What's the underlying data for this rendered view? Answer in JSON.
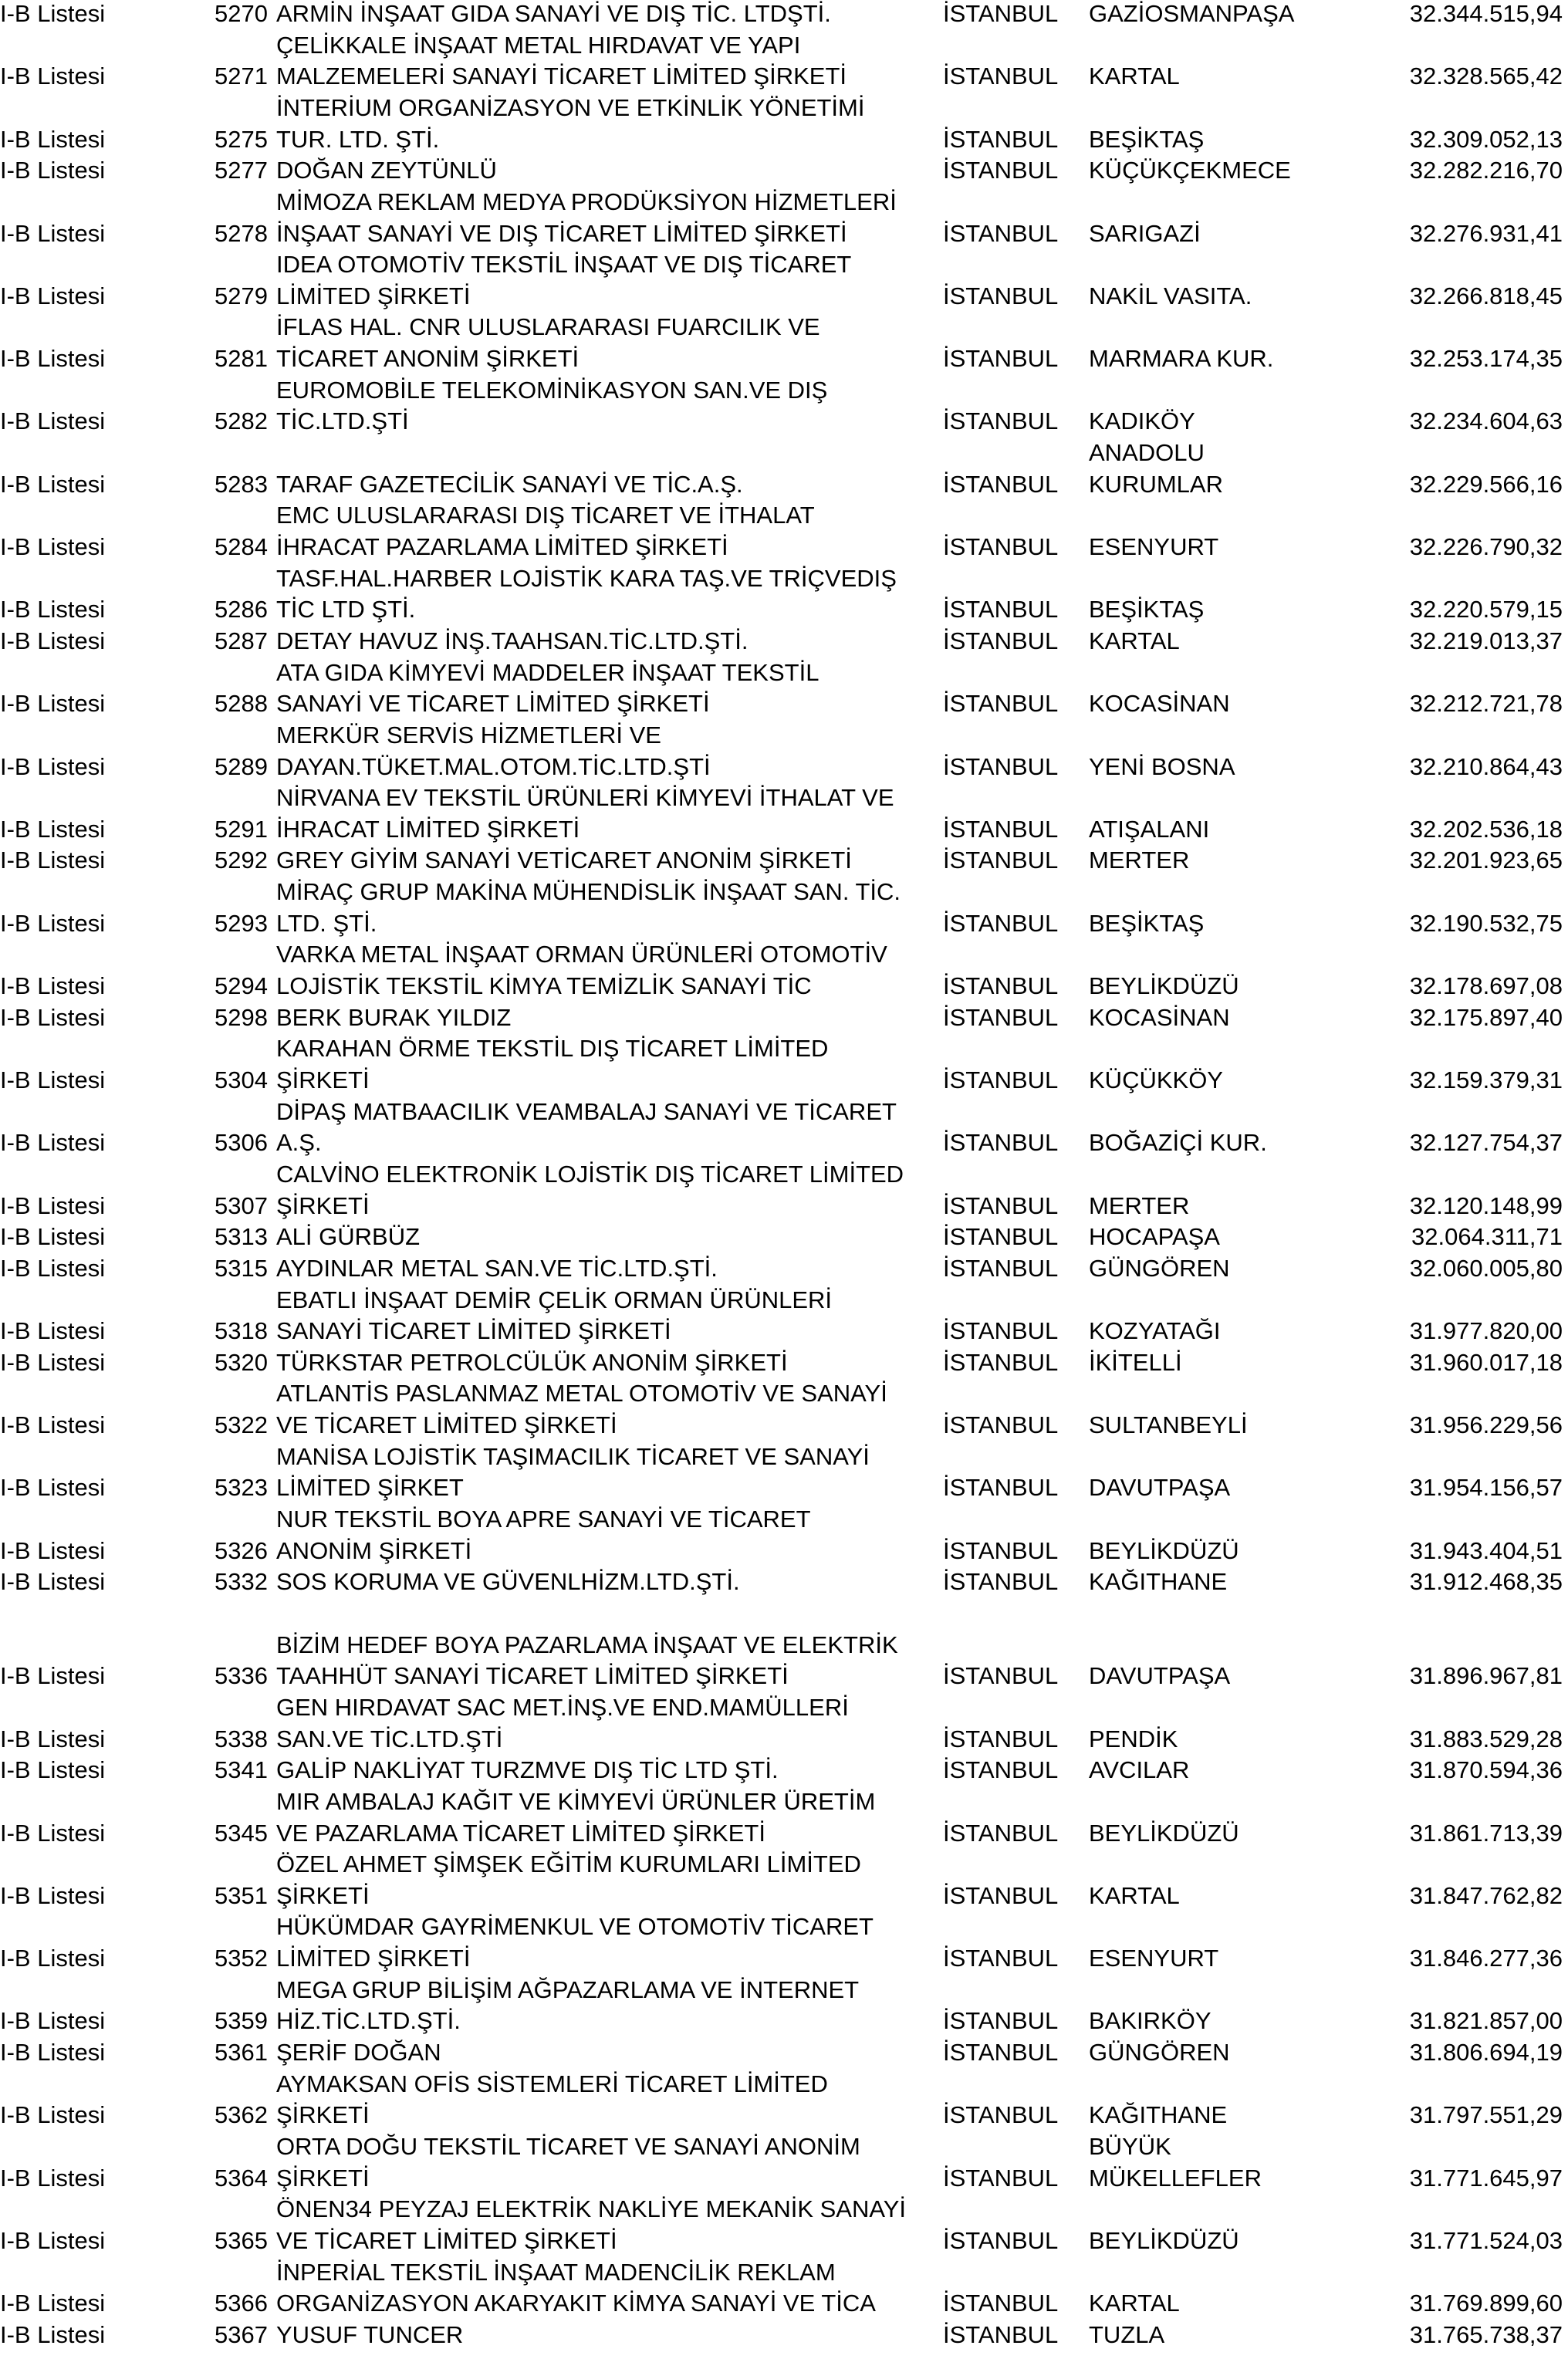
{
  "rows": [
    {
      "list": "I-B Listesi",
      "no": "5270",
      "name": [
        "ARMİN İNŞAAT GIDA SANAYİ VE DIŞ TİC. LTDŞTİ."
      ],
      "city": "İSTANBUL",
      "district": [
        "GAZİOSMANPAŞA"
      ],
      "amount": "32.344.515,94"
    },
    {
      "list": "I-B Listesi",
      "no": "5271",
      "name": [
        "ÇELİKKALE İNŞAAT METAL HIRDAVAT VE YAPI",
        "MALZEMELERİ SANAYİ TİCARET LİMİTED ŞİRKETİ"
      ],
      "city": "İSTANBUL",
      "district": [
        "KARTAL"
      ],
      "amount": "32.328.565,42"
    },
    {
      "list": "I-B Listesi",
      "no": "5275",
      "name": [
        "İNTERİUM ORGANİZASYON VE ETKİNLİK YÖNETİMİ",
        "TUR. LTD. ŞTİ."
      ],
      "city": "İSTANBUL",
      "district": [
        "BEŞİKTAŞ"
      ],
      "amount": "32.309.052,13"
    },
    {
      "list": "I-B Listesi",
      "no": "5277",
      "name": [
        "DOĞAN ZEYTÜNLÜ"
      ],
      "city": "İSTANBUL",
      "district": [
        "KÜÇÜKÇEKMECE"
      ],
      "amount": "32.282.216,70"
    },
    {
      "list": "I-B Listesi",
      "no": "5278",
      "name": [
        "MİMOZA REKLAM MEDYA PRODÜKSİYON HİZMETLERİ",
        "İNŞAAT SANAYİ VE DIŞ TİCARET LİMİTED ŞİRKETİ"
      ],
      "city": "İSTANBUL",
      "district": [
        "SARIGAZİ"
      ],
      "amount": "32.276.931,41"
    },
    {
      "list": "I-B Listesi",
      "no": "5279",
      "name": [
        "IDEA OTOMOTİV TEKSTİL İNŞAAT VE DIŞ TİCARET",
        "LİMİTED ŞİRKETİ"
      ],
      "city": "İSTANBUL",
      "district": [
        "NAKİL VASITA."
      ],
      "amount": "32.266.818,45"
    },
    {
      "list": "I-B Listesi",
      "no": "5281",
      "name": [
        "İFLAS HAL. CNR ULUSLARARASI FUARCILIK VE",
        "TİCARET ANONİM ŞİRKETİ"
      ],
      "city": "İSTANBUL",
      "district": [
        "MARMARA KUR."
      ],
      "amount": "32.253.174,35"
    },
    {
      "list": "I-B Listesi",
      "no": "5282",
      "name": [
        "EUROMOBİLE TELEKOMİNİKASYON SAN.VE DIŞ",
        "TİC.LTD.ŞTİ"
      ],
      "city": "İSTANBUL",
      "district": [
        "KADIKÖY"
      ],
      "amount": "32.234.604,63"
    },
    {
      "list": "I-B Listesi",
      "no": "5283",
      "name": [
        "TARAF GAZETECİLİK SANAYİ VE TİC.A.Ş."
      ],
      "city": "İSTANBUL",
      "district": [
        "ANADOLU",
        "KURUMLAR"
      ],
      "amount": "32.229.566,16"
    },
    {
      "list": "I-B Listesi",
      "no": "5284",
      "name": [
        "EMC ULUSLARARASI DIŞ TİCARET VE İTHALAT",
        "İHRACAT PAZARLAMA LİMİTED ŞİRKETİ"
      ],
      "city": "İSTANBUL",
      "district": [
        "ESENYURT"
      ],
      "amount": "32.226.790,32"
    },
    {
      "list": "I-B Listesi",
      "no": "5286",
      "name": [
        "TASF.HAL.HARBER LOJİSTİK KARA TAŞ.VE TRİÇVEDIŞ",
        "TİC LTD ŞTİ."
      ],
      "city": "İSTANBUL",
      "district": [
        "BEŞİKTAŞ"
      ],
      "amount": "32.220.579,15"
    },
    {
      "list": "I-B Listesi",
      "no": "5287",
      "name": [
        "DETAY HAVUZ İNŞ.TAAHSAN.TİC.LTD.ŞTİ."
      ],
      "city": "İSTANBUL",
      "district": [
        "KARTAL"
      ],
      "amount": "32.219.013,37"
    },
    {
      "list": "I-B Listesi",
      "no": "5288",
      "name": [
        "ATA GIDA KİMYEVİ MADDELER İNŞAAT TEKSTİL",
        "SANAYİ VE TİCARET LİMİTED ŞİRKETİ"
      ],
      "city": "İSTANBUL",
      "district": [
        "KOCASİNAN"
      ],
      "amount": "32.212.721,78"
    },
    {
      "list": "I-B Listesi",
      "no": "5289",
      "name": [
        "MERKÜR SERVİS HİZMETLERİ VE",
        "DAYAN.TÜKET.MAL.OTOM.TİC.LTD.ŞTİ"
      ],
      "city": "İSTANBUL",
      "district": [
        "YENİ BOSNA"
      ],
      "amount": "32.210.864,43"
    },
    {
      "list": "I-B Listesi",
      "no": "5291",
      "name": [
        "NİRVANA EV TEKSTİL ÜRÜNLERİ KİMYEVİ İTHALAT VE",
        "İHRACAT LİMİTED ŞİRKETİ"
      ],
      "city": "İSTANBUL",
      "district": [
        "ATIŞALANI"
      ],
      "amount": "32.202.536,18"
    },
    {
      "list": "I-B Listesi",
      "no": "5292",
      "name": [
        "GREY GİYİM SANAYİ VETİCARET ANONİM ŞİRKETİ"
      ],
      "city": "İSTANBUL",
      "district": [
        "MERTER"
      ],
      "amount": "32.201.923,65"
    },
    {
      "list": "I-B Listesi",
      "no": "5293",
      "name": [
        "MİRAÇ GRUP MAKİNA MÜHENDİSLİK İNŞAAT SAN. TİC.",
        "LTD. ŞTİ."
      ],
      "city": "İSTANBUL",
      "district": [
        "BEŞİKTAŞ"
      ],
      "amount": "32.190.532,75"
    },
    {
      "list": "I-B Listesi",
      "no": "5294",
      "name": [
        "VARKA METAL İNŞAAT ORMAN ÜRÜNLERİ OTOMOTİV",
        "LOJİSTİK TEKSTİL KİMYA TEMİZLİK SANAYİ TİC"
      ],
      "city": "İSTANBUL",
      "district": [
        "BEYLİKDÜZÜ"
      ],
      "amount": "32.178.697,08"
    },
    {
      "list": "I-B Listesi",
      "no": "5298",
      "name": [
        "BERK BURAK YILDIZ"
      ],
      "city": "İSTANBUL",
      "district": [
        "KOCASİNAN"
      ],
      "amount": "32.175.897,40"
    },
    {
      "list": "I-B Listesi",
      "no": "5304",
      "name": [
        "KARAHAN ÖRME TEKSTİL DIŞ TİCARET LİMİTED",
        "ŞİRKETİ"
      ],
      "city": "İSTANBUL",
      "district": [
        "KÜÇÜKKÖY"
      ],
      "amount": "32.159.379,31"
    },
    {
      "list": "I-B Listesi",
      "no": "5306",
      "name": [
        "DİPAŞ MATBAACILIK VEAMBALAJ SANAYİ VE TİCARET",
        "A.Ş."
      ],
      "city": "İSTANBUL",
      "district": [
        "BOĞAZİÇİ KUR."
      ],
      "amount": "32.127.754,37"
    },
    {
      "list": "I-B Listesi",
      "no": "5307",
      "name": [
        "CALVİNO ELEKTRONİK LOJİSTİK DIŞ TİCARET LİMİTED",
        "ŞİRKETİ"
      ],
      "city": "İSTANBUL",
      "district": [
        "MERTER"
      ],
      "amount": "32.120.148,99"
    },
    {
      "list": "I-B Listesi",
      "no": "5313",
      "name": [
        "ALİ GÜRBÜZ"
      ],
      "city": "İSTANBUL",
      "district": [
        "HOCAPAŞA"
      ],
      "amount": "32.064.311,71"
    },
    {
      "list": "I-B Listesi",
      "no": "5315",
      "name": [
        "AYDINLAR METAL SAN.VE TİC.LTD.ŞTİ."
      ],
      "city": "İSTANBUL",
      "district": [
        "GÜNGÖREN"
      ],
      "amount": "32.060.005,80"
    },
    {
      "list": "I-B Listesi",
      "no": "5318",
      "name": [
        "EBATLI İNŞAAT DEMİR ÇELİK ORMAN ÜRÜNLERİ",
        "SANAYİ TİCARET LİMİTED ŞİRKETİ"
      ],
      "city": "İSTANBUL",
      "district": [
        "KOZYATAĞI"
      ],
      "amount": "31.977.820,00"
    },
    {
      "list": "I-B Listesi",
      "no": "5320",
      "name": [
        "TÜRKSTAR PETROLCÜLÜK ANONİM ŞİRKETİ"
      ],
      "city": "İSTANBUL",
      "district": [
        "İKİTELLİ"
      ],
      "amount": "31.960.017,18"
    },
    {
      "list": "I-B Listesi",
      "no": "5322",
      "name": [
        "ATLANTİS PASLANMAZ METAL OTOMOTİV VE SANAYİ",
        "VE TİCARET LİMİTED ŞİRKETİ"
      ],
      "city": "İSTANBUL",
      "district": [
        "SULTANBEYLİ"
      ],
      "amount": "31.956.229,56"
    },
    {
      "list": "I-B Listesi",
      "no": "5323",
      "name": [
        "MANİSA LOJİSTİK TAŞIMACILIK TİCARET VE SANAYİ",
        "LİMİTED ŞİRKET"
      ],
      "city": "İSTANBUL",
      "district": [
        "DAVUTPAŞA"
      ],
      "amount": "31.954.156,57"
    },
    {
      "list": "I-B Listesi",
      "no": "5326",
      "name": [
        "NUR TEKSTİL BOYA APRE SANAYİ VE TİCARET",
        "ANONİM ŞİRKETİ"
      ],
      "city": "İSTANBUL",
      "district": [
        "BEYLİKDÜZÜ"
      ],
      "amount": "31.943.404,51"
    },
    {
      "list": "I-B Listesi",
      "no": "5332",
      "name": [
        "SOS KORUMA VE GÜVENLHİZM.LTD.ŞTİ."
      ],
      "city": "İSTANBUL",
      "district": [
        "KAĞITHANE"
      ],
      "amount": "31.912.468,35"
    },
    {
      "spacer": true
    },
    {
      "list": "I-B Listesi",
      "no": "5336",
      "name": [
        "BİZİM HEDEF BOYA PAZARLAMA İNŞAAT VE ELEKTRİK",
        "TAAHHÜT SANAYİ TİCARET LİMİTED ŞİRKETİ"
      ],
      "city": "İSTANBUL",
      "district": [
        "DAVUTPAŞA"
      ],
      "amount": "31.896.967,81"
    },
    {
      "list": "I-B Listesi",
      "no": "5338",
      "name": [
        "GEN HIRDAVAT SAC MET.İNŞ.VE END.MAMÜLLERİ",
        "SAN.VE TİC.LTD.ŞTİ"
      ],
      "city": "İSTANBUL",
      "district": [
        "PENDİK"
      ],
      "amount": "31.883.529,28"
    },
    {
      "list": "I-B Listesi",
      "no": "5341",
      "name": [
        "GALİP NAKLİYAT TURZMVE DIŞ TİC LTD ŞTİ."
      ],
      "city": "İSTANBUL",
      "district": [
        "AVCILAR"
      ],
      "amount": "31.870.594,36"
    },
    {
      "list": "I-B Listesi",
      "no": "5345",
      "name": [
        "MIR AMBALAJ KAĞIT VE KİMYEVİ ÜRÜNLER ÜRETİM",
        "VE PAZARLAMA TİCARET LİMİTED ŞİRKETİ"
      ],
      "city": "İSTANBUL",
      "district": [
        "BEYLİKDÜZÜ"
      ],
      "amount": "31.861.713,39"
    },
    {
      "list": "I-B Listesi",
      "no": "5351",
      "name": [
        "ÖZEL AHMET ŞİMŞEK EĞİTİM KURUMLARI LİMİTED",
        "ŞİRKETİ"
      ],
      "city": "İSTANBUL",
      "district": [
        "KARTAL"
      ],
      "amount": "31.847.762,82"
    },
    {
      "list": "I-B Listesi",
      "no": "5352",
      "name": [
        "HÜKÜMDAR GAYRİMENKUL VE OTOMOTİV TİCARET",
        "LİMİTED ŞİRKETİ"
      ],
      "city": "İSTANBUL",
      "district": [
        "ESENYURT"
      ],
      "amount": "31.846.277,36"
    },
    {
      "list": "I-B Listesi",
      "no": "5359",
      "name": [
        "MEGA GRUP BİLİŞİM AĞPAZARLAMA VE İNTERNET",
        "HİZ.TİC.LTD.ŞTİ."
      ],
      "city": "İSTANBUL",
      "district": [
        "BAKIRKÖY"
      ],
      "amount": "31.821.857,00"
    },
    {
      "list": "I-B Listesi",
      "no": "5361",
      "name": [
        "ŞERİF DOĞAN"
      ],
      "city": "İSTANBUL",
      "district": [
        "GÜNGÖREN"
      ],
      "amount": "31.806.694,19"
    },
    {
      "list": "I-B Listesi",
      "no": "5362",
      "name": [
        "AYMAKSAN OFİS SİSTEMLERİ TİCARET LİMİTED",
        "ŞİRKETİ"
      ],
      "city": "İSTANBUL",
      "district": [
        "KAĞITHANE"
      ],
      "amount": "31.797.551,29"
    },
    {
      "list": "I-B Listesi",
      "no": "5364",
      "name": [
        "ORTA DOĞU TEKSTİL TİCARET VE SANAYİ ANONİM",
        "ŞİRKETİ"
      ],
      "city": "İSTANBUL",
      "district": [
        "BÜYÜK",
        "MÜKELLEFLER"
      ],
      "amount": "31.771.645,97"
    },
    {
      "list": "I-B Listesi",
      "no": "5365",
      "name": [
        "ÖNEN34 PEYZAJ ELEKTRİK NAKLİYE MEKANİK SANAYİ",
        "VE TİCARET LİMİTED ŞİRKETİ"
      ],
      "city": "İSTANBUL",
      "district": [
        "BEYLİKDÜZÜ"
      ],
      "amount": "31.771.524,03"
    },
    {
      "list": "I-B Listesi",
      "no": "5366",
      "name": [
        "İNPERİAL TEKSTİL İNŞAAT MADENCİLİK REKLAM",
        "ORGANİZASYON AKARYAKIT KİMYA SANAYİ VE TİCA"
      ],
      "city": "İSTANBUL",
      "district": [
        "KARTAL"
      ],
      "amount": "31.769.899,60"
    },
    {
      "list": "I-B Listesi",
      "no": "5367",
      "name": [
        "YUSUF TUNCER"
      ],
      "city": "İSTANBUL",
      "district": [
        "TUZLA"
      ],
      "amount": "31.765.738,37"
    }
  ]
}
